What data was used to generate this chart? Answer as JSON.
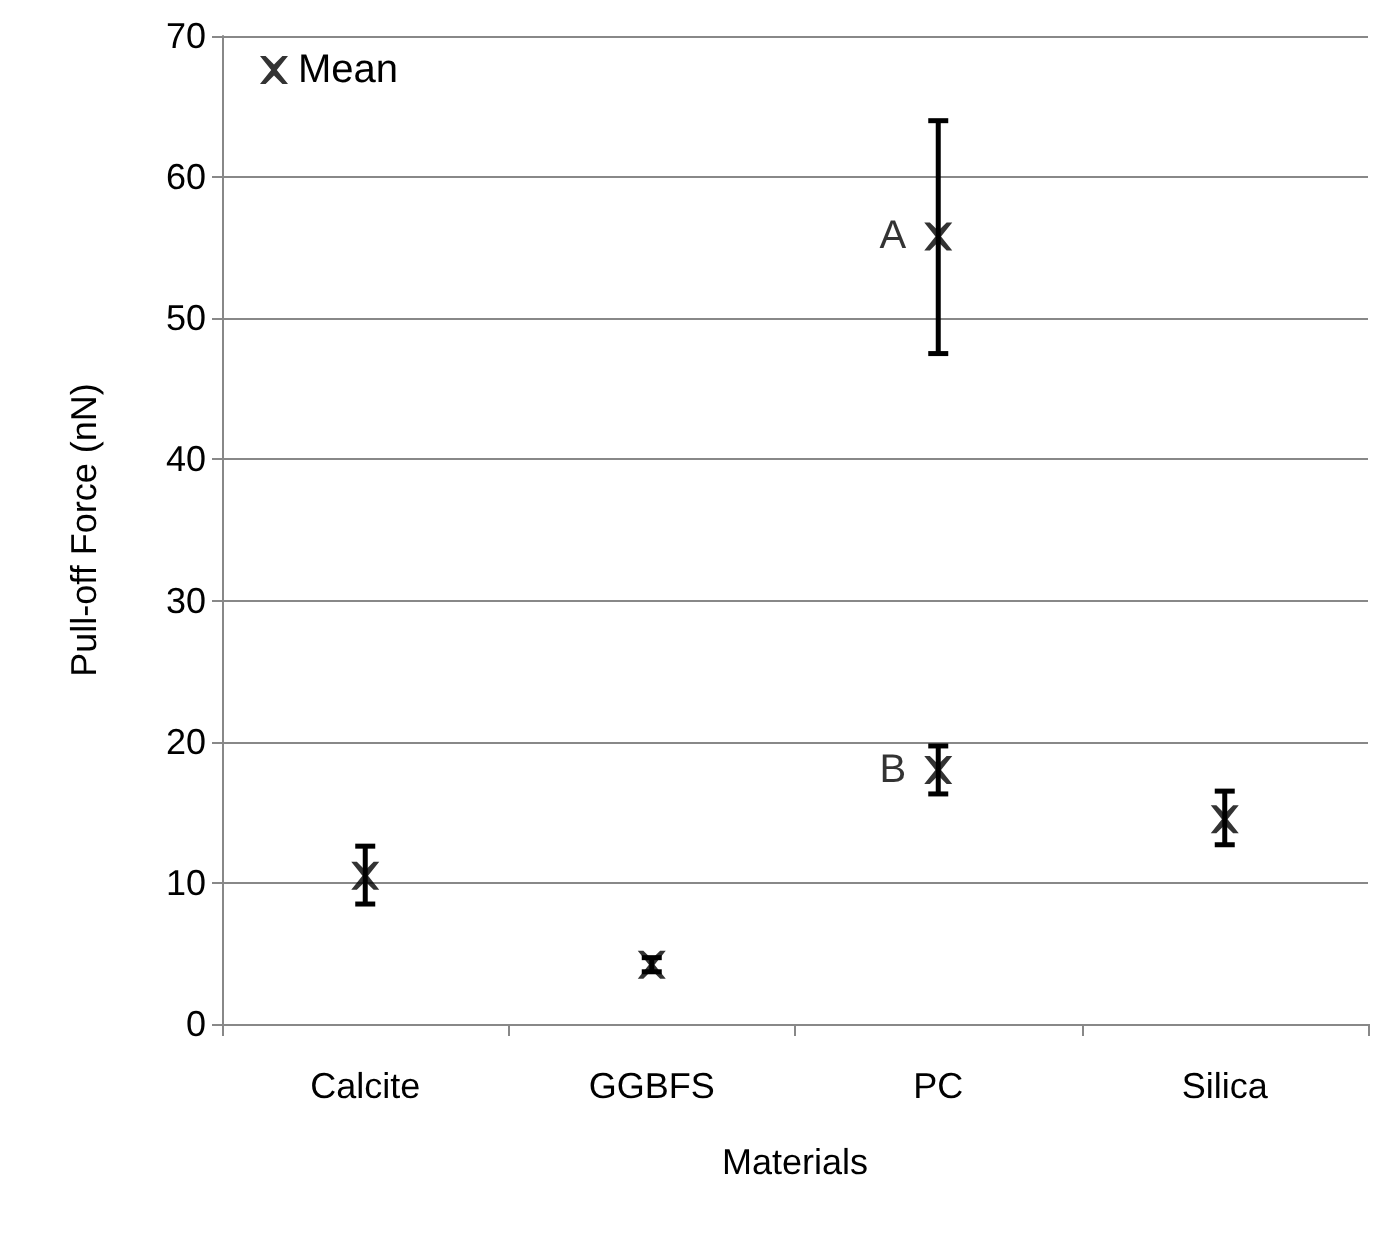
{
  "chart_data": {
    "type": "scatter",
    "xlabel": "Materials",
    "ylabel": "Pull-off Force (nN)",
    "categories": [
      "Calcite",
      "GGBFS",
      "PC",
      "Silica"
    ],
    "series": [
      {
        "name": "Mean",
        "color": "#000000",
        "x": [
          "Calcite",
          "GGBFS",
          "PC",
          "PC",
          "Silica"
        ],
        "values": [
          10.5,
          4.2,
          55.8,
          18,
          14.5
        ],
        "errors": [
          [
            8.5,
            12.6
          ],
          [
            3.7,
            4.7
          ],
          [
            47.5,
            64
          ],
          [
            16.3,
            19.7
          ],
          [
            12.7,
            16.5
          ]
        ]
      }
    ],
    "annotations": [
      {
        "text": "A",
        "x": "PC",
        "y": 55.8
      },
      {
        "text": "B",
        "x": "PC",
        "y": 18
      }
    ],
    "ylim": [
      0,
      70
    ],
    "yticks": [
      0,
      10,
      20,
      30,
      40,
      50,
      60,
      70
    ],
    "grid": "y",
    "legend": "top left",
    "marker": "cross"
  }
}
